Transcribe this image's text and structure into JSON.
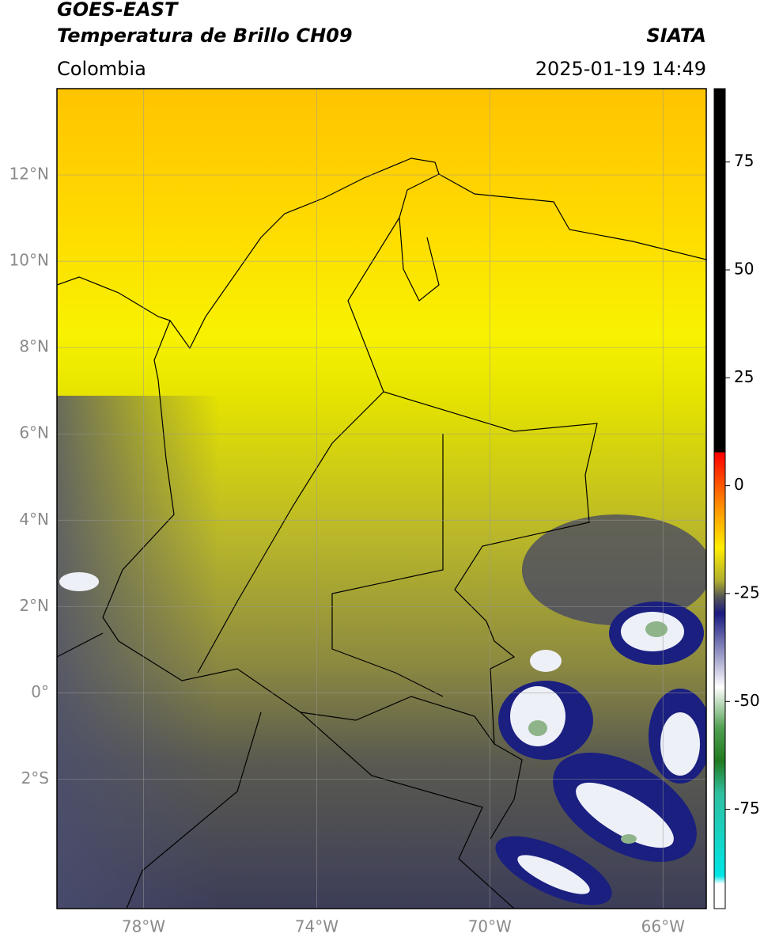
{
  "header": {
    "satellite": "GOES-EAST",
    "product": "Temperatura de Brillo CH09",
    "region": "Colombia",
    "source": "SIATA",
    "timestamp": "2025-01-19 14:49"
  },
  "map": {
    "xlim": [
      -80,
      -65
    ],
    "ylim": [
      -5,
      14
    ],
    "xticks": [
      {
        "value": -78,
        "label": "78°W"
      },
      {
        "value": -74,
        "label": "74°W"
      },
      {
        "value": -70,
        "label": "70°W"
      },
      {
        "value": -66,
        "label": "66°W"
      }
    ],
    "yticks": [
      {
        "value": 12,
        "label": "12°N"
      },
      {
        "value": 10,
        "label": "10°N"
      },
      {
        "value": 8,
        "label": "8°N"
      },
      {
        "value": 6,
        "label": "6°N"
      },
      {
        "value": 4,
        "label": "4°N"
      },
      {
        "value": 2,
        "label": "2°N"
      },
      {
        "value": 0,
        "label": "0°"
      },
      {
        "value": -2,
        "label": "2°S"
      }
    ],
    "grid": true
  },
  "colorbar": {
    "range": [
      -98,
      92
    ],
    "ticks": [
      75,
      50,
      25,
      0,
      -25,
      -50,
      -75
    ]
  }
}
